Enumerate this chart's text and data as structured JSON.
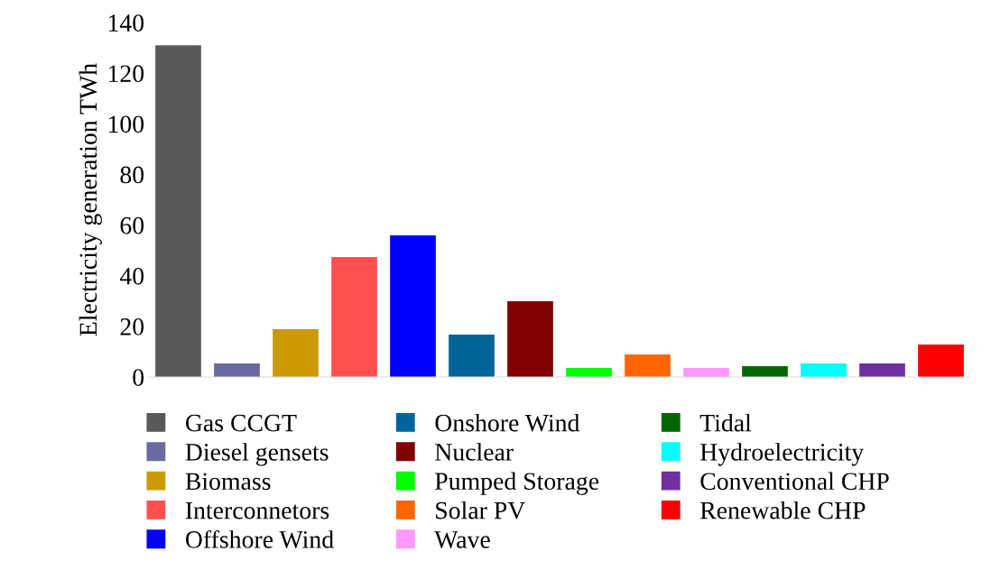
{
  "chart_data": {
    "type": "bar",
    "ylabel": "Electricity generation TWh",
    "categories": [
      null,
      null,
      null,
      null,
      null,
      null,
      null,
      null,
      null,
      null,
      null,
      null,
      null,
      null
    ],
    "series": [
      {
        "name": "Gas CCGT",
        "color": "#595959",
        "values": [
          131,
          null,
          null,
          null,
          null,
          null,
          null,
          null,
          null,
          null,
          null,
          null,
          null,
          null
        ]
      },
      {
        "name": "Diesel gensets",
        "color": "#6a6aa0",
        "values": [
          null,
          5.3,
          null,
          null,
          null,
          null,
          null,
          null,
          null,
          null,
          null,
          null,
          null,
          null
        ]
      },
      {
        "name": "Biomass",
        "color": "#cc9900",
        "values": [
          null,
          null,
          18.9,
          null,
          null,
          null,
          null,
          null,
          null,
          null,
          null,
          null,
          null,
          null
        ]
      },
      {
        "name": "Interconnetors",
        "color": "#ff5050",
        "values": [
          null,
          null,
          null,
          47.4,
          null,
          null,
          null,
          null,
          null,
          null,
          null,
          null,
          null,
          null
        ]
      },
      {
        "name": "Offshore Wind",
        "color": "#0000ff",
        "values": [
          null,
          null,
          null,
          null,
          55.9,
          null,
          null,
          null,
          null,
          null,
          null,
          null,
          null,
          null
        ]
      },
      {
        "name": "Onshore Wind",
        "color": "#006699",
        "values": [
          null,
          null,
          null,
          null,
          null,
          16.7,
          null,
          null,
          null,
          null,
          null,
          null,
          null,
          null
        ]
      },
      {
        "name": "Nuclear",
        "color": "#800000",
        "values": [
          null,
          null,
          null,
          null,
          null,
          null,
          29.9,
          null,
          null,
          null,
          null,
          null,
          null,
          null
        ]
      },
      {
        "name": "Pumped Storage",
        "color": "#00ff00",
        "values": [
          null,
          null,
          null,
          null,
          null,
          null,
          null,
          3.6,
          null,
          null,
          null,
          null,
          null,
          null
        ]
      },
      {
        "name": "Solar PV",
        "color": "#ff6600",
        "values": [
          null,
          null,
          null,
          null,
          null,
          null,
          null,
          null,
          8.9,
          null,
          null,
          null,
          null,
          null
        ]
      },
      {
        "name": "Wave",
        "color": "#ff99ff",
        "values": [
          null,
          null,
          null,
          null,
          null,
          null,
          null,
          null,
          null,
          3.6,
          null,
          null,
          null,
          null
        ]
      },
      {
        "name": "Tidal",
        "color": "#006600",
        "values": [
          null,
          null,
          null,
          null,
          null,
          null,
          null,
          null,
          null,
          null,
          4.3,
          null,
          null,
          null
        ]
      },
      {
        "name": "Hydroelectricity",
        "color": "#00ffff",
        "values": [
          null,
          null,
          null,
          null,
          null,
          null,
          null,
          null,
          null,
          null,
          null,
          5.3,
          null,
          null
        ]
      },
      {
        "name": "Conventional CHP",
        "color": "#7030a0",
        "values": [
          null,
          null,
          null,
          null,
          null,
          null,
          null,
          null,
          null,
          null,
          null,
          null,
          5.3,
          null
        ]
      },
      {
        "name": "Renewable CHP",
        "color": "#ff0000",
        "values": [
          null,
          null,
          null,
          null,
          null,
          null,
          null,
          null,
          null,
          null,
          null,
          null,
          null,
          12.8
        ]
      }
    ],
    "ylim": [
      0,
      140
    ],
    "yticks": [
      0,
      20,
      40,
      60,
      80,
      100,
      120,
      140
    ],
    "grid": false,
    "legend": "bottom"
  }
}
